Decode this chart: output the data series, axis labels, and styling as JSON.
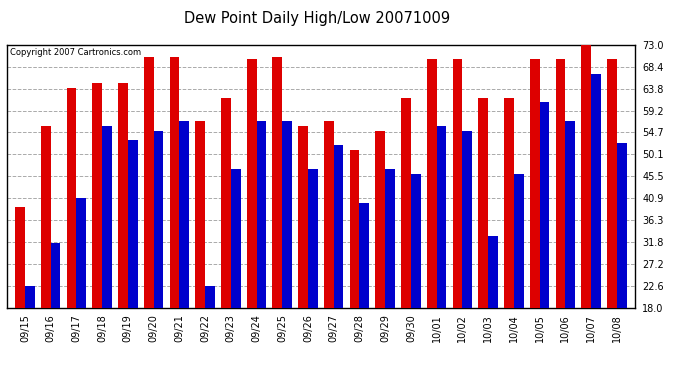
{
  "title": "Dew Point Daily High/Low 20071009",
  "copyright": "Copyright 2007 Cartronics.com",
  "dates": [
    "09/15",
    "09/16",
    "09/17",
    "09/18",
    "09/19",
    "09/20",
    "09/21",
    "09/22",
    "09/23",
    "09/24",
    "09/25",
    "09/26",
    "09/27",
    "09/28",
    "09/29",
    "09/30",
    "10/01",
    "10/02",
    "10/03",
    "10/04",
    "10/05",
    "10/06",
    "10/07",
    "10/08"
  ],
  "highs": [
    39.0,
    56.0,
    64.0,
    65.0,
    65.0,
    70.5,
    70.5,
    57.0,
    62.0,
    70.0,
    70.5,
    56.0,
    57.0,
    51.0,
    55.0,
    62.0,
    70.0,
    70.0,
    62.0,
    62.0,
    70.0,
    70.0,
    73.0,
    70.0
  ],
  "lows": [
    22.5,
    31.5,
    41.0,
    56.0,
    53.0,
    55.0,
    57.0,
    22.5,
    47.0,
    57.0,
    57.0,
    47.0,
    52.0,
    40.0,
    47.0,
    46.0,
    56.0,
    55.0,
    33.0,
    46.0,
    61.0,
    57.0,
    67.0,
    52.5
  ],
  "high_color": "#dd0000",
  "low_color": "#0000cc",
  "bg_color": "#ffffff",
  "grid_color": "#aaaaaa",
  "ymin": 18.0,
  "ymax": 73.0,
  "yticks": [
    18.0,
    22.6,
    27.2,
    31.8,
    36.3,
    40.9,
    45.5,
    50.1,
    54.7,
    59.2,
    63.8,
    68.4,
    73.0
  ],
  "bar_width": 0.38,
  "figwidth": 6.9,
  "figheight": 3.75,
  "dpi": 100
}
